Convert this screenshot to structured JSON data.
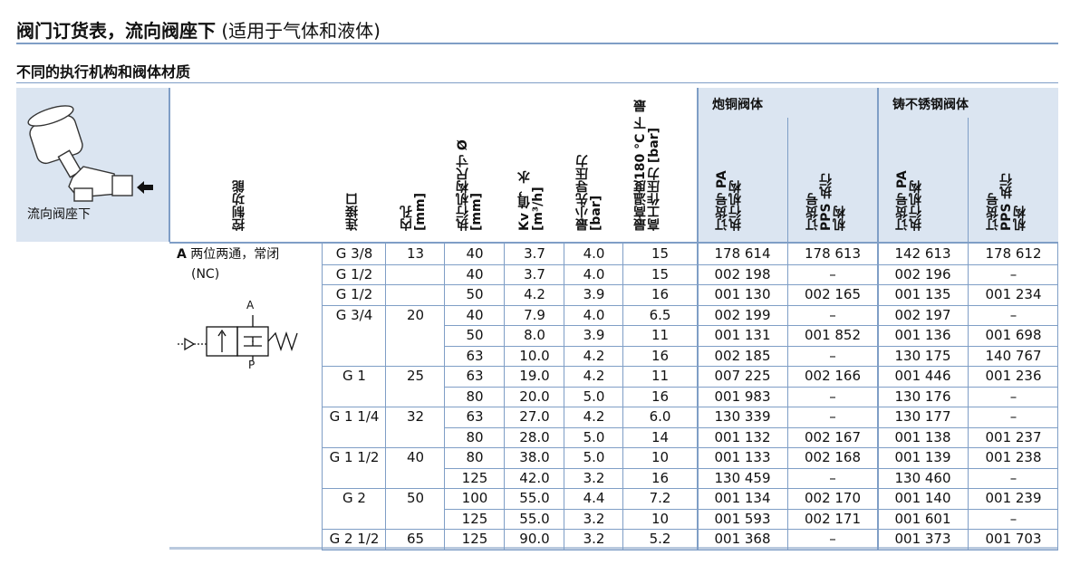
{
  "doc": {
    "title_bold": "阀门订货表，流向阀座下",
    "title_rest": " (适用于气体和液体)",
    "subtitle": "不同的执行机构和阀体材质"
  },
  "header": {
    "flow_label": "流向阀座下",
    "control_function": "控制功能",
    "port": "连接口",
    "bore": "内孔 [mm]",
    "actuator_size": "执行机构尺寸 Ø [mm]",
    "kv": "Kv 值，水 [m³/h]",
    "min_pilot": "最小先导压力 [bar]",
    "max_pressure": "最高温度180 °C 下 最高工作压力 [bar]",
    "brass_group": "炮铜阀体",
    "stainless_group": "铸不锈钢阀体",
    "order_pa": "订货号 PA 执行机构",
    "order_pps": "订货号 PPS 执行机构"
  },
  "function": {
    "prefix": "A",
    "line1": "两位两通，常闭",
    "line2": "(NC)",
    "symbol_a": "A",
    "symbol_p": "P"
  },
  "rows": [
    {
      "port": "G 3/8",
      "bore": "13",
      "size": "40",
      "kv": "3.7",
      "pilot": "4.0",
      "pmax": "15",
      "b_pa": "178 614",
      "b_pps": "178 613",
      "s_pa": "142 613",
      "s_pps": "178 612"
    },
    {
      "port": "G 1/2",
      "bore": "",
      "size": "40",
      "kv": "3.7",
      "pilot": "4.0",
      "pmax": "15",
      "b_pa": "002 198",
      "b_pps": "–",
      "s_pa": "002 196",
      "s_pps": "–"
    },
    {
      "port": "G 1/2",
      "bore": "",
      "size": "50",
      "kv": "4.2",
      "pilot": "3.9",
      "pmax": "16",
      "b_pa": "001 130",
      "b_pps": "002 165",
      "s_pa": "001 135",
      "s_pps": "001 234"
    },
    {
      "port": "G 3/4",
      "bore": "20",
      "size": "40",
      "kv": "7.9",
      "pilot": "4.0",
      "pmax": "6.5",
      "b_pa": "002 199",
      "b_pps": "–",
      "s_pa": "002 197",
      "s_pps": "–"
    },
    {
      "port": "",
      "bore": "",
      "size": "50",
      "kv": "8.0",
      "pilot": "3.9",
      "pmax": "11",
      "b_pa": "001 131",
      "b_pps": "001 852",
      "s_pa": "001 136",
      "s_pps": "001 698"
    },
    {
      "port": "",
      "bore": "",
      "size": "63",
      "kv": "10.0",
      "pilot": "4.2",
      "pmax": "16",
      "b_pa": "002 185",
      "b_pps": "–",
      "s_pa": "130 175",
      "s_pps": "140 767"
    },
    {
      "port": "G 1",
      "bore": "25",
      "size": "63",
      "kv": "19.0",
      "pilot": "4.2",
      "pmax": "11",
      "b_pa": "007 225",
      "b_pps": "002 166",
      "s_pa": "001 446",
      "s_pps": "001 236"
    },
    {
      "port": "",
      "bore": "",
      "size": "80",
      "kv": "20.0",
      "pilot": "5.0",
      "pmax": "16",
      "b_pa": "001 983",
      "b_pps": "–",
      "s_pa": "130 176",
      "s_pps": "–"
    },
    {
      "port": "G 1 1/4",
      "bore": "32",
      "size": "63",
      "kv": "27.0",
      "pilot": "4.2",
      "pmax": "6.0",
      "b_pa": "130 339",
      "b_pps": "–",
      "s_pa": "130 177",
      "s_pps": "–"
    },
    {
      "port": "",
      "bore": "",
      "size": "80",
      "kv": "28.0",
      "pilot": "5.0",
      "pmax": "14",
      "b_pa": "001 132",
      "b_pps": "002 167",
      "s_pa": "001 138",
      "s_pps": "001 237"
    },
    {
      "port": "G 1 1/2",
      "bore": "40",
      "size": "80",
      "kv": "38.0",
      "pilot": "5.0",
      "pmax": "10",
      "b_pa": "001 133",
      "b_pps": "002 168",
      "s_pa": "001 139",
      "s_pps": "001 238"
    },
    {
      "port": "",
      "bore": "",
      "size": "125",
      "kv": "42.0",
      "pilot": "3.2",
      "pmax": "16",
      "b_pa": "130 459",
      "b_pps": "–",
      "s_pa": "130 460",
      "s_pps": "–"
    },
    {
      "port": "G 2",
      "bore": "50",
      "size": "100",
      "kv": "55.0",
      "pilot": "4.4",
      "pmax": "7.2",
      "b_pa": "001 134",
      "b_pps": "002 170",
      "s_pa": "001 140",
      "s_pps": "001 239"
    },
    {
      "port": "",
      "bore": "",
      "size": "125",
      "kv": "55.0",
      "pilot": "3.2",
      "pmax": "10",
      "b_pa": "001 593",
      "b_pps": "002 171",
      "s_pa": "001 601",
      "s_pps": "–"
    },
    {
      "port": "G 2 1/2",
      "bore": "65",
      "size": "125",
      "kv": "90.0",
      "pilot": "3.2",
      "pmax": "5.2",
      "b_pa": "001 368",
      "b_pps": "–",
      "s_pa": "001 373",
      "s_pps": "001 703"
    }
  ]
}
